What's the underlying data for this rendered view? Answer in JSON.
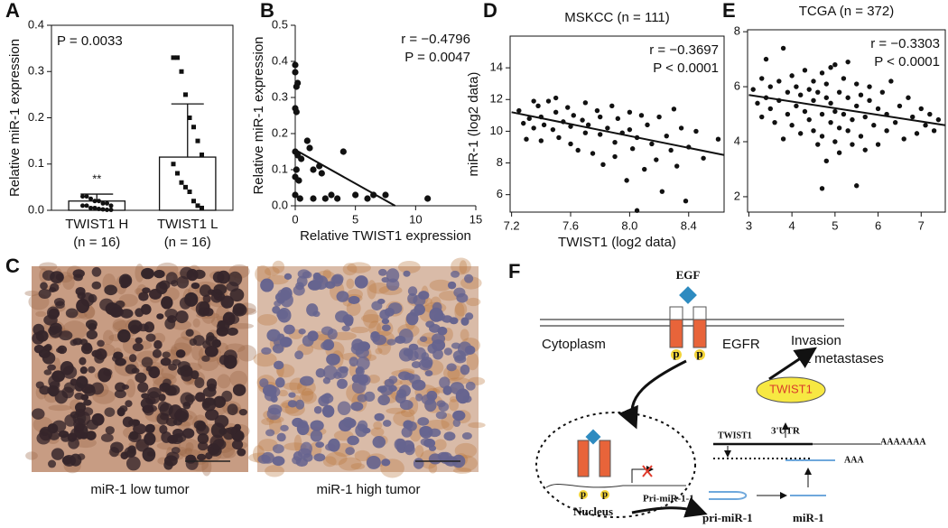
{
  "panel_labels": [
    "A",
    "B",
    "C",
    "D",
    "E",
    "F"
  ],
  "chart_data": [
    {
      "type": "bar",
      "y_label": "Relative miR-1 expression",
      "categories": [
        "TWIST1 H",
        "TWIST1 L"
      ],
      "category_sublabels": [
        "(n = 16)",
        "(n = 16)"
      ],
      "values": [
        0.02,
        0.115
      ],
      "errors": [
        0.015,
        0.115
      ],
      "points": [
        [
          0.03,
          0.03,
          0.025,
          0.02,
          0.02,
          0.015,
          0.015,
          0.01,
          0.01,
          0.01,
          0.005,
          0.005,
          0.003,
          0.002,
          0.001,
          0.001
        ],
        [
          0.33,
          0.33,
          0.3,
          0.25,
          0.2,
          0.18,
          0.15,
          0.12,
          0.1,
          0.08,
          0.06,
          0.05,
          0.04,
          0.02,
          0.01,
          0.005
        ]
      ],
      "annotations": [
        "P = 0.0033"
      ],
      "significance": "**",
      "ylim": [
        0,
        0.4
      ],
      "yticks": [
        {
          "value": 0,
          "label": "0.0"
        },
        0.1,
        0.2,
        0.3,
        0.4
      ]
    },
    {
      "type": "scatter",
      "x_label": "Relative TWIST1 expression",
      "y_label": "Relative miR-1 expression",
      "x": [
        0,
        0,
        0.2,
        0.1,
        0,
        0.1,
        0,
        0.2,
        0.5,
        0.1,
        0,
        0.3,
        0,
        0.4,
        1,
        1.2,
        1.5,
        2,
        2.2,
        1.5,
        2.5,
        3,
        3.5,
        4,
        5,
        6,
        6.5,
        7.5,
        11
      ],
      "y": [
        0.39,
        0.37,
        0.34,
        0.33,
        0.27,
        0.26,
        0.15,
        0.14,
        0.13,
        0.1,
        0.08,
        0.07,
        0.03,
        0.02,
        0.18,
        0.16,
        0.1,
        0.11,
        0.09,
        0.02,
        0.02,
        0.03,
        0.02,
        0.15,
        0.03,
        0.02,
        0.03,
        0.03,
        0.02
      ],
      "fit": {
        "x": [
          0,
          8.3
        ],
        "y": [
          0.155,
          0
        ]
      },
      "annotations": [
        "r = −0.4796",
        "P = 0.0047"
      ],
      "xlim": [
        0,
        15
      ],
      "xticks": [
        0,
        5,
        10,
        15
      ],
      "ylim": [
        0,
        0.5
      ],
      "yticks": [
        {
          "value": 0,
          "label": "0.0"
        },
        0.1,
        0.2,
        0.3,
        0.4,
        0.5
      ],
      "frame": false
    },
    {
      "type": "scatter",
      "title": "MSKCC (n = 111)",
      "x_label": "TWIST1 (log2 data)",
      "y_label": "miR-1 (log2 data)",
      "x": [
        7.25,
        7.28,
        7.3,
        7.32,
        7.35,
        7.38,
        7.4,
        7.4,
        7.42,
        7.45,
        7.48,
        7.5,
        7.52,
        7.55,
        7.58,
        7.6,
        7.6,
        7.62,
        7.65,
        7.68,
        7.7,
        7.7,
        7.72,
        7.75,
        7.78,
        7.8,
        7.8,
        7.82,
        7.85,
        7.88,
        7.9,
        7.9,
        7.92,
        7.95,
        7.98,
        8.0,
        8.0,
        8.02,
        8.05,
        8.05,
        8.08,
        8.1,
        8.12,
        8.15,
        8.18,
        8.2,
        8.22,
        8.25,
        8.28,
        8.3,
        8.32,
        8.35,
        8.38,
        8.4,
        8.45,
        8.5,
        7.35,
        7.5,
        8.6
      ],
      "y": [
        11.3,
        10.5,
        9.5,
        10.8,
        10.2,
        11.6,
        9.4,
        10.9,
        10.4,
        11.9,
        10.1,
        11.2,
        9.6,
        10.6,
        11.5,
        10.3,
        9.2,
        11.0,
        8.8,
        10.7,
        11.8,
        9.9,
        10.4,
        8.6,
        11.3,
        9.8,
        10.9,
        7.9,
        10.2,
        11.6,
        9.3,
        8.4,
        10.8,
        9.9,
        6.9,
        11.2,
        10.1,
        8.9,
        9.6,
        5.0,
        11.0,
        7.6,
        10.4,
        9.2,
        8.2,
        10.9,
        6.2,
        9.7,
        8.8,
        11.4,
        7.8,
        10.2,
        5.6,
        9.0,
        10.0,
        8.3,
        11.9,
        12.1,
        9.5
      ],
      "fit": {
        "x": [
          7.2,
          8.64
        ],
        "y": [
          11.2,
          8.5
        ]
      },
      "annotations": [
        "r = −0.3697",
        "P < 0.0001"
      ],
      "xlim": [
        7.19,
        8.64
      ],
      "xticks": [
        7.2,
        7.6,
        {
          "value": 8,
          "label": "8.0"
        },
        8.4
      ],
      "ylim": [
        4.9,
        16
      ],
      "yticks": [
        6,
        8,
        10,
        12,
        14
      ],
      "frame": true
    },
    {
      "type": "scatter",
      "title": "TCGA (n = 372)",
      "x": [
        3.1,
        3.2,
        3.3,
        3.3,
        3.4,
        3.5,
        3.5,
        3.6,
        3.7,
        3.7,
        3.8,
        3.9,
        3.9,
        4.0,
        4.0,
        4.1,
        4.1,
        4.2,
        4.2,
        4.3,
        4.3,
        4.4,
        4.4,
        4.5,
        4.5,
        4.5,
        4.6,
        4.6,
        4.7,
        4.7,
        4.7,
        4.8,
        4.8,
        4.8,
        4.9,
        4.9,
        5.0,
        5.0,
        5.0,
        5.1,
        5.1,
        5.1,
        5.2,
        5.2,
        5.3,
        5.3,
        5.3,
        5.4,
        5.4,
        5.5,
        5.5,
        5.6,
        5.6,
        5.7,
        5.7,
        5.8,
        5.8,
        5.9,
        6.0,
        6.0,
        6.1,
        6.2,
        6.2,
        6.3,
        6.4,
        6.5,
        6.6,
        6.7,
        6.8,
        6.9,
        7.0,
        7.1,
        7.2,
        7.3,
        7.4,
        3.4,
        4.7,
        5.5,
        4.9,
        3.8
      ],
      "y": [
        5.9,
        5.4,
        6.3,
        4.9,
        5.6,
        6.0,
        5.2,
        4.7,
        6.2,
        5.5,
        7.4,
        5.0,
        5.8,
        6.4,
        4.6,
        5.3,
        6.0,
        4.3,
        5.7,
        6.6,
        5.1,
        4.8,
        5.9,
        6.2,
        4.4,
        5.5,
        3.9,
        5.8,
        6.5,
        5.0,
        4.2,
        5.6,
        3.3,
        6.1,
        4.7,
        5.4,
        6.8,
        5.1,
        4.0,
        5.8,
        4.5,
        3.6,
        6.3,
        5.0,
        4.4,
        5.6,
        6.9,
        4.8,
        3.9,
        5.3,
        6.1,
        4.2,
        5.7,
        4.9,
        3.7,
        5.5,
        6.0,
        4.6,
        5.2,
        3.9,
        5.8,
        4.4,
        5.0,
        6.2,
        4.7,
        5.3,
        4.1,
        5.6,
        4.9,
        4.3,
        5.2,
        4.6,
        5.0,
        4.4,
        4.8,
        7.0,
        2.3,
        2.4,
        6.7,
        4.1
      ],
      "fit": {
        "x": [
          3,
          7.56
        ],
        "y": [
          5.7,
          4.6
        ]
      },
      "annotations": [
        "r = −0.3303",
        "P < 0.0001"
      ],
      "xlim": [
        2.97,
        7.56
      ],
      "xticks": [
        3,
        4,
        5,
        6,
        7
      ],
      "ylim": [
        1.44,
        8.07
      ],
      "yticks": [
        2,
        4,
        6,
        8
      ],
      "frame": true
    }
  ],
  "images": [
    {
      "caption": "miR-1 low tumor"
    },
    {
      "caption": "miR-1 high tumor"
    }
  ],
  "diagram": {
    "egf": "EGF",
    "egfr": "EGFR",
    "cytoplasm": "Cytoplasm",
    "invasion": "Invasion",
    "metastases": "& metastases",
    "twist1_protein": "TWIST1",
    "twist1_gene": "TWIST1",
    "utr": "3'UTR",
    "polya": "AAAAAAA",
    "polya_short": "AAA",
    "pri_mir_1_1": "Pri-miR-1-1",
    "nucleus": "Nucleus",
    "pri_mir_1": "pri-miR-1",
    "mir_1": "miR-1",
    "phospho": "p"
  }
}
